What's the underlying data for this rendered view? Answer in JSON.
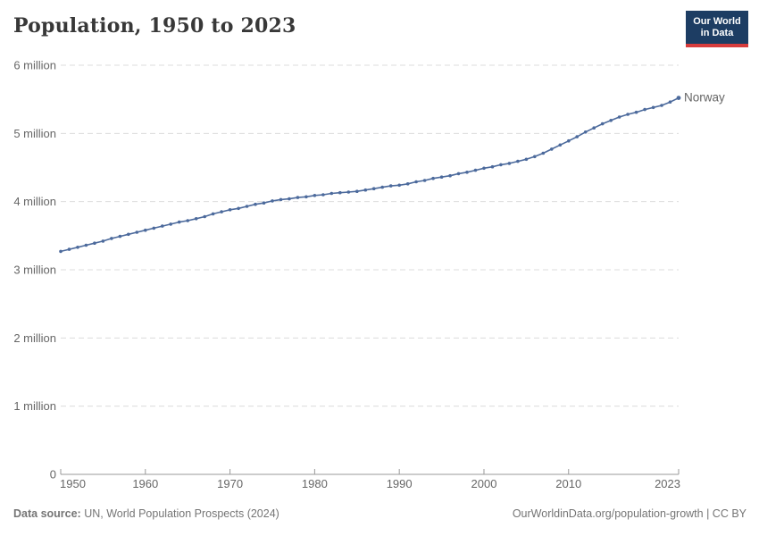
{
  "header": {
    "title": "Population, 1950 to 2023",
    "logo": {
      "line1": "Our World",
      "line2": "in Data",
      "bg_color": "#1d3d63",
      "bar_color": "#d73c3c"
    }
  },
  "chart_data": {
    "type": "line",
    "title": "Population, 1950 to 2023",
    "xlabel": "",
    "ylabel": "",
    "xlim": [
      1950,
      2023
    ],
    "ylim": [
      0,
      6
    ],
    "grid": true,
    "legend_position": "end-of-line",
    "x_ticks": [
      1950,
      1960,
      1970,
      1980,
      1990,
      2000,
      2010,
      2023
    ],
    "y_ticks": [
      {
        "value": 0,
        "label": "0"
      },
      {
        "value": 1,
        "label": "1 million"
      },
      {
        "value": 2,
        "label": "2 million"
      },
      {
        "value": 3,
        "label": "3 million"
      },
      {
        "value": 4,
        "label": "4 million"
      },
      {
        "value": 5,
        "label": "5 million"
      },
      {
        "value": 6,
        "label": "6 million"
      }
    ],
    "unit": "million",
    "series": [
      {
        "name": "Norway",
        "color": "#4C6A9C",
        "x": [
          1950,
          1951,
          1952,
          1953,
          1954,
          1955,
          1956,
          1957,
          1958,
          1959,
          1960,
          1961,
          1962,
          1963,
          1964,
          1965,
          1966,
          1967,
          1968,
          1969,
          1970,
          1971,
          1972,
          1973,
          1974,
          1975,
          1976,
          1977,
          1978,
          1979,
          1980,
          1981,
          1982,
          1983,
          1984,
          1985,
          1986,
          1987,
          1988,
          1989,
          1990,
          1991,
          1992,
          1993,
          1994,
          1995,
          1996,
          1997,
          1998,
          1999,
          2000,
          2001,
          2002,
          2003,
          2004,
          2005,
          2006,
          2007,
          2008,
          2009,
          2010,
          2011,
          2012,
          2013,
          2014,
          2015,
          2016,
          2017,
          2018,
          2019,
          2020,
          2021,
          2022,
          2023
        ],
        "values": [
          3.27,
          3.3,
          3.33,
          3.36,
          3.39,
          3.42,
          3.46,
          3.49,
          3.52,
          3.55,
          3.58,
          3.61,
          3.64,
          3.67,
          3.7,
          3.72,
          3.75,
          3.78,
          3.82,
          3.85,
          3.88,
          3.9,
          3.93,
          3.96,
          3.98,
          4.01,
          4.03,
          4.04,
          4.06,
          4.07,
          4.09,
          4.1,
          4.12,
          4.13,
          4.14,
          4.15,
          4.17,
          4.19,
          4.21,
          4.23,
          4.24,
          4.26,
          4.29,
          4.31,
          4.34,
          4.36,
          4.38,
          4.41,
          4.43,
          4.46,
          4.49,
          4.51,
          4.54,
          4.56,
          4.59,
          4.62,
          4.66,
          4.71,
          4.77,
          4.83,
          4.89,
          4.95,
          5.02,
          5.08,
          5.14,
          5.19,
          5.24,
          5.28,
          5.31,
          5.35,
          5.38,
          5.41,
          5.46,
          5.52
        ]
      }
    ],
    "style": {
      "gridline_color": "#dcdcdc",
      "axis_color": "#999999",
      "tick_label_color": "#666666"
    }
  },
  "footer": {
    "source_label": "Data source:",
    "source_text": " UN, World Population Prospects (2024)",
    "right_text": "OurWorldinData.org/population-growth | CC BY"
  }
}
